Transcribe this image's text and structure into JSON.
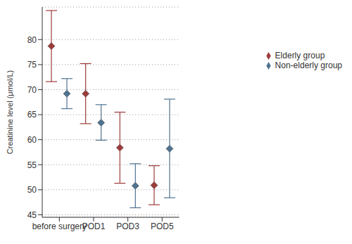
{
  "chart_data": {
    "type": "scatter",
    "categories": [
      "before surgery",
      "POD1",
      "POD3",
      "POD5"
    ],
    "y_label": "Creatinine level (μmol/L)",
    "ylim": [
      44.5,
      86.5
    ],
    "yticks": [
      45,
      50,
      55,
      60,
      65,
      70,
      75,
      80
    ],
    "grid": true,
    "legend": "right",
    "marker": "diamond",
    "series": [
      {
        "name": "Elderly group",
        "color": "#9e3b3b",
        "values": [
          78.7,
          69.2,
          58.4,
          50.9
        ],
        "ci_lower": [
          71.6,
          63.2,
          51.3,
          47.0
        ],
        "ci_upper": [
          85.8,
          75.2,
          65.5,
          54.8
        ]
      },
      {
        "name": "Non-elderly group",
        "color": "#4f7391",
        "values": [
          69.2,
          63.4,
          50.8,
          58.2
        ],
        "ci_lower": [
          66.2,
          59.9,
          46.4,
          48.4
        ],
        "ci_upper": [
          72.2,
          67.0,
          55.2,
          68.1
        ]
      }
    ]
  }
}
